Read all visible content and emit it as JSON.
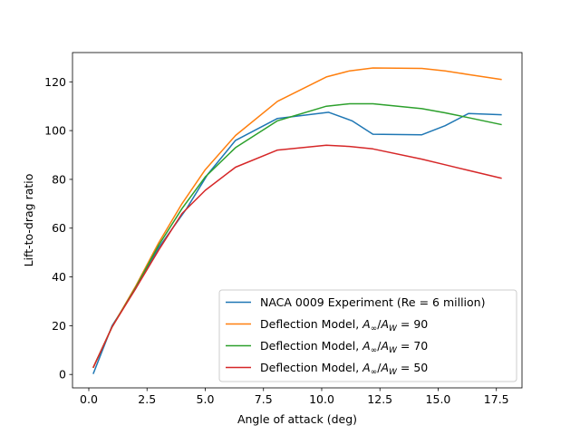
{
  "chart_data": {
    "type": "line",
    "xlabel": "Angle of attack (deg)",
    "ylabel": "Lift-to-drag ratio",
    "xlim": [
      -0.7,
      18.6
    ],
    "ylim": [
      -5.5,
      132
    ],
    "xticks": [
      0.0,
      2.5,
      5.0,
      7.5,
      10.0,
      12.5,
      15.0,
      17.5
    ],
    "xtick_labels": [
      "0.0",
      "2.5",
      "5.0",
      "7.5",
      "10.0",
      "12.5",
      "15.0",
      "17.5"
    ],
    "yticks": [
      0,
      20,
      40,
      60,
      80,
      100,
      120
    ],
    "ytick_labels": [
      "0",
      "20",
      "40",
      "60",
      "80",
      "100",
      "120"
    ],
    "grid": false,
    "legend_position": "lower-right",
    "series": [
      {
        "name": "NACA 0009 Experiment (Re = 6 million)",
        "color": "#1f77b4",
        "x": [
          0.2,
          1.0,
          2.0,
          3.0,
          4.2,
          5.1,
          6.3,
          8.1,
          10.3,
          11.3,
          12.2,
          14.3,
          15.3,
          16.3,
          17.7
        ],
        "y": [
          0.5,
          20,
          35,
          52,
          68,
          82,
          96,
          105,
          107.5,
          104,
          98.5,
          98.3,
          102,
          107,
          106.5
        ]
      },
      {
        "name": "Deflection Model, ",
        "name_math": [
          "A",
          "∞",
          "/",
          "A",
          "W",
          " = 90"
        ],
        "color": "#ff7f0e",
        "x": [
          0.2,
          1.0,
          2.0,
          3.0,
          4.0,
          5.0,
          6.3,
          8.1,
          10.2,
          11.2,
          12.2,
          14.3,
          15.3,
          16.3,
          17.7
        ],
        "y": [
          3,
          19.5,
          36,
          54,
          70,
          84,
          98,
          112,
          122,
          124.5,
          125.7,
          125.5,
          124.5,
          123,
          121
        ]
      },
      {
        "name": "Deflection Model, ",
        "name_math": [
          "A",
          "∞",
          "/",
          "A",
          "W",
          " = 70"
        ],
        "color": "#2ca02c",
        "x": [
          0.2,
          1.0,
          2.0,
          3.0,
          4.0,
          5.0,
          6.3,
          8.1,
          10.2,
          11.2,
          12.2,
          14.3,
          15.3,
          16.3,
          17.7
        ],
        "y": [
          3,
          19.5,
          35.5,
          53,
          68,
          81,
          93,
          104,
          110,
          111,
          111,
          109,
          107.3,
          105.3,
          102.5
        ]
      },
      {
        "name": "Deflection Model, ",
        "name_math": [
          "A",
          "∞",
          "/",
          "A",
          "W",
          " = 50"
        ],
        "color": "#d62728",
        "x": [
          0.2,
          1.0,
          2.0,
          3.0,
          4.0,
          5.0,
          6.3,
          8.1,
          10.2,
          11.2,
          12.2,
          14.3,
          15.3,
          16.3,
          17.7
        ],
        "y": [
          3,
          19.5,
          35,
          51,
          66,
          75.5,
          85,
          92,
          94,
          93.5,
          92.5,
          88.3,
          86,
          83.7,
          80.5
        ]
      }
    ]
  }
}
